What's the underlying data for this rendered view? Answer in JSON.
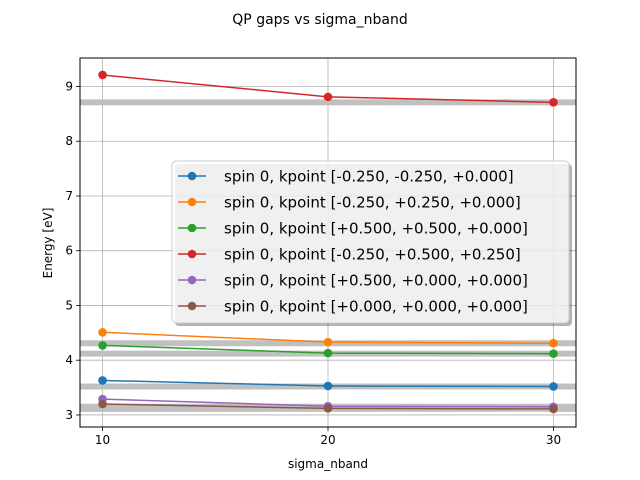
{
  "chart_data": {
    "type": "line",
    "title": "QP gaps vs sigma_nband",
    "xlabel": "sigma_nband",
    "ylabel": "Energy [eV]",
    "x": [
      10,
      20,
      30
    ],
    "xticks": [
      "10",
      "20",
      "30"
    ],
    "yticks": [
      "3",
      "4",
      "5",
      "6",
      "7",
      "8",
      "9"
    ],
    "xlim": [
      9,
      31
    ],
    "ylim": [
      2.78,
      9.52
    ],
    "grid": true,
    "legend_location": "center-right",
    "series": [
      {
        "name": "spin 0, kpoint [-0.250, -0.250, +0.000]",
        "color": "#1f77b4",
        "values": [
          3.63,
          3.53,
          3.52
        ]
      },
      {
        "name": "spin 0, kpoint [-0.250, +0.250, +0.000]",
        "color": "#ff7f0e",
        "values": [
          4.51,
          4.33,
          4.31
        ]
      },
      {
        "name": "spin 0, kpoint [+0.500, +0.500, +0.000]",
        "color": "#2ca02c",
        "values": [
          4.27,
          4.13,
          4.12
        ]
      },
      {
        "name": "spin 0, kpoint [-0.250, +0.500, +0.250]",
        "color": "#d62728",
        "values": [
          9.21,
          8.81,
          8.71
        ]
      },
      {
        "name": "spin 0, kpoint [+0.500, +0.000, +0.000]",
        "color": "#9467bd",
        "values": [
          3.29,
          3.16,
          3.15
        ]
      },
      {
        "name": "spin 0, kpoint [+0.000, +0.000, +0.000]",
        "color": "#8c564b",
        "values": [
          3.2,
          3.12,
          3.11
        ]
      }
    ],
    "reference_lines": {
      "color": "#c0c0c0",
      "values": [
        8.71,
        4.31,
        4.12,
        3.52,
        3.15,
        3.11
      ]
    }
  }
}
